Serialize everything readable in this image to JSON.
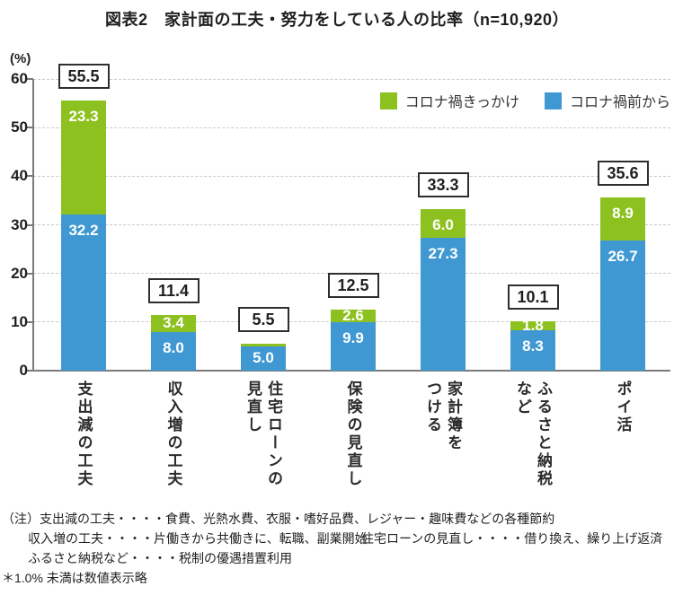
{
  "chart_data": {
    "type": "bar",
    "stacked": true,
    "title": "図表2　家計面の工夫・努力をしている人の比率（n=10,920）",
    "unit_label": "(%)",
    "categories": [
      "支出減の工夫",
      "収入増の工夫",
      "住宅ローンの\n見直し",
      "保険の見直し",
      "家計簿を\nつける",
      "ふるさと納税\nなど",
      "ポイ活"
    ],
    "series": [
      {
        "name": "コロナ禍きっかけ",
        "stack": "top",
        "color": "#8cc11f",
        "values": [
          23.3,
          3.4,
          0.5,
          2.6,
          6.0,
          1.8,
          8.9
        ]
      },
      {
        "name": "コロナ禍前から",
        "stack": "bottom",
        "color": "#3f98d2",
        "values": [
          32.2,
          8.0,
          5.0,
          9.9,
          27.3,
          8.3,
          26.7
        ]
      }
    ],
    "totals": [
      55.5,
      11.4,
      5.5,
      12.5,
      33.3,
      10.1,
      35.6
    ],
    "ylim": [
      0,
      60
    ],
    "yticks": [
      0,
      10,
      20,
      30,
      40,
      50,
      60
    ],
    "grid": "dashed-horizontal",
    "legend_position": "top-right",
    "value_label_threshold": 1.0
  },
  "legend": {
    "items": [
      {
        "label": "コロナ禍きっかけ",
        "color": "#8cc11f"
      },
      {
        "label": "コロナ禍前から",
        "color": "#3f98d2"
      }
    ]
  },
  "notes": {
    "line1": "（注）支出減の工夫・・・・食費、光熱水費、衣服・嗜好品費、レジャー・趣味費などの各種節約",
    "line2a": "収入増の工夫・・・・片働きから共働きに、転職、副業開始",
    "line2b": "住宅ローンの見直し・・・・借り換え、繰り上げ返済",
    "line3": "ふるさと納税など・・・・税制の優遇措置利用",
    "line4": "＊1.0% 未満は数値表示略"
  }
}
